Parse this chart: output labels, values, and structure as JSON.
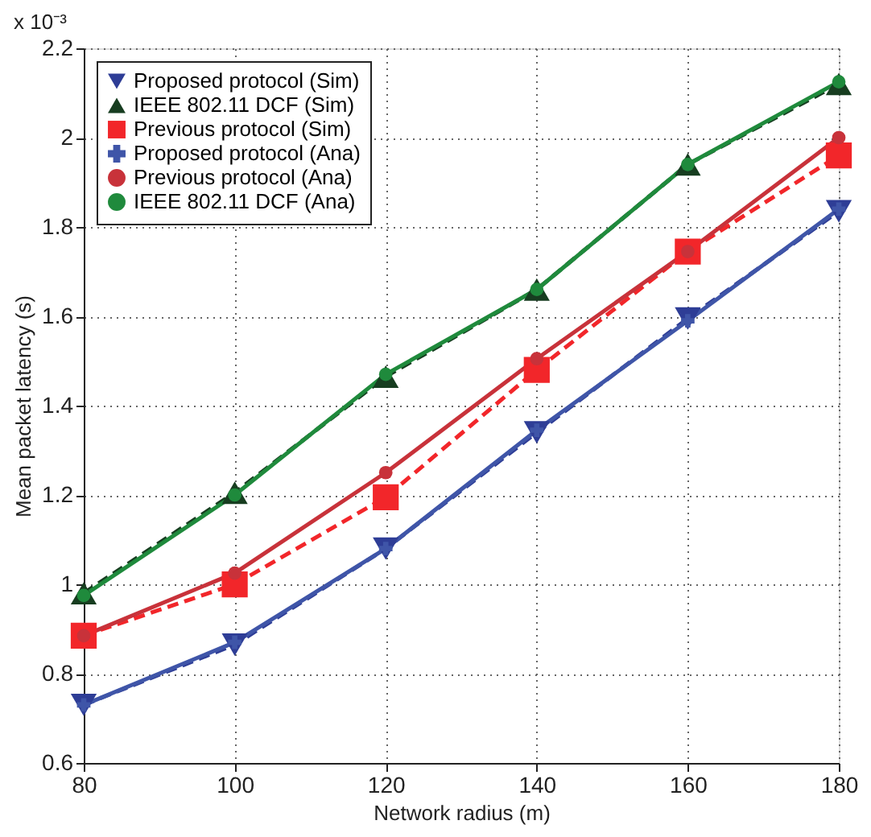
{
  "chart_data": {
    "type": "line",
    "xlabel": "Network radius (m)",
    "ylabel": "Mean packet latency (s)",
    "annotations": [
      "x 10⁻³"
    ],
    "x": [
      80,
      100,
      120,
      140,
      160,
      180
    ],
    "xlim": [
      80,
      180
    ],
    "xticks": [
      80,
      100,
      120,
      140,
      160,
      180
    ],
    "ylim": [
      0.6,
      2.2
    ],
    "yticks": [
      0.6,
      0.8,
      1,
      1.2,
      1.4,
      1.6,
      1.8,
      2,
      2.2
    ],
    "grid": true,
    "legend": "top left",
    "series": [
      {
        "name": "Proposed protocol (Sim)",
        "color": "#2e3d96",
        "marker": "triangle-down",
        "line_style": "dashed",
        "values": [
          0.73,
          0.865,
          1.08,
          1.34,
          1.595,
          1.835
        ]
      },
      {
        "name": "IEEE 802.11 DCF (Sim)",
        "color": "#173d20",
        "marker": "triangle",
        "line_style": "dashed",
        "values": [
          0.98,
          1.205,
          1.465,
          1.66,
          1.94,
          2.12
        ]
      },
      {
        "name": "Previous protocol (Sim)",
        "color": "#f2262a",
        "marker": "square",
        "line_style": "dashed",
        "values": [
          0.885,
          1.0,
          1.195,
          1.48,
          1.745,
          1.96
        ]
      },
      {
        "name": "Proposed protocol (Ana)",
        "color": "#3f55a8",
        "marker": "cross",
        "line_style": "solid",
        "values": [
          0.73,
          0.87,
          1.08,
          1.345,
          1.59,
          1.84
        ]
      },
      {
        "name": "Previous protocol (Ana)",
        "color": "#c8323a",
        "marker": "circle",
        "line_style": "solid",
        "values": [
          0.885,
          1.025,
          1.25,
          1.505,
          1.745,
          2.0
        ]
      },
      {
        "name": "IEEE 802.11 DCF (Ana)",
        "color": "#1f8a3c",
        "marker": "circle",
        "line_style": "solid",
        "values": [
          0.975,
          1.2,
          1.47,
          1.66,
          1.94,
          2.125
        ]
      }
    ]
  }
}
